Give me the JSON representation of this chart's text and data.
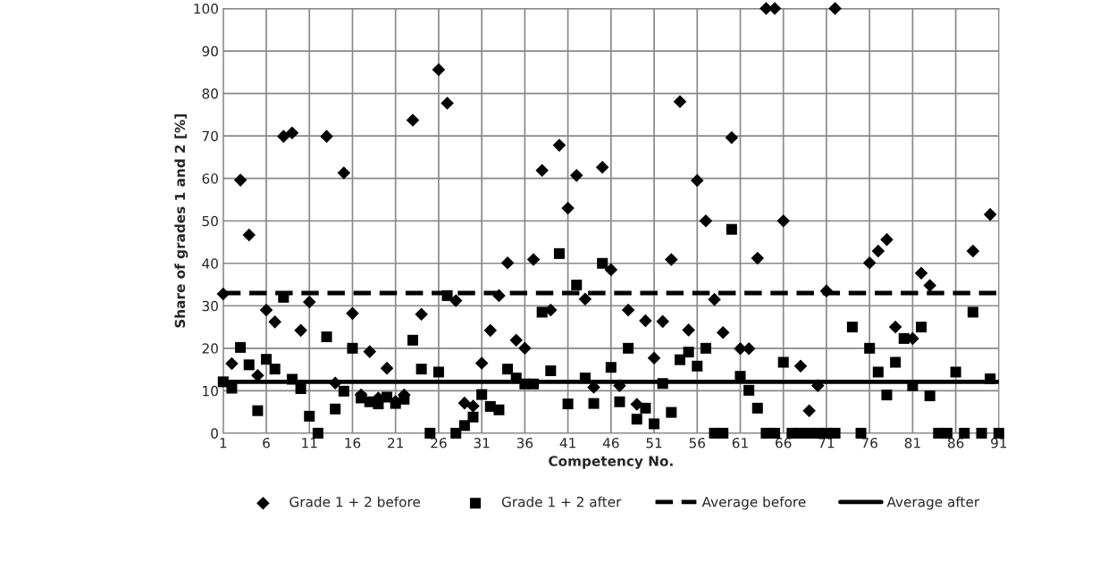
{
  "chart_data": {
    "type": "scatter",
    "xlabel": "Competency No.",
    "ylabel": "Share of grades 1 and 2 [%]",
    "x": [
      1,
      2,
      3,
      4,
      5,
      6,
      7,
      8,
      9,
      10,
      11,
      12,
      13,
      14,
      15,
      16,
      17,
      18,
      19,
      20,
      21,
      22,
      23,
      24,
      25,
      26,
      27,
      28,
      29,
      30,
      31,
      32,
      33,
      34,
      35,
      36,
      37,
      38,
      39,
      40,
      41,
      42,
      43,
      44,
      45,
      46,
      47,
      48,
      49,
      50,
      51,
      52,
      53,
      54,
      55,
      56,
      57,
      58,
      59,
      60,
      61,
      62,
      63,
      64,
      65,
      66,
      67,
      68,
      69,
      70,
      71,
      72,
      73,
      74,
      75,
      76,
      77,
      78,
      79,
      80,
      81,
      82,
      83,
      84,
      85,
      86,
      87,
      88,
      89,
      90,
      91
    ],
    "series": [
      {
        "name": "Grade 1 + 2 before",
        "color": "#000000",
        "marker": "diamond",
        "values": [
          32.8,
          16.4,
          59.6,
          46.7,
          13.6,
          29,
          26.2,
          69.9,
          70.7,
          24.2,
          30.9,
          null,
          69.9,
          11.8,
          61.3,
          28.2,
          9,
          19.2,
          8.3,
          15.3,
          7.5,
          9,
          73.7,
          28,
          null,
          85.6,
          77.7,
          31.2,
          7.1,
          6.4,
          16.5,
          24.2,
          32.4,
          40.1,
          21.9,
          20,
          40.9,
          61.9,
          29,
          67.8,
          53,
          60.7,
          31.6,
          10.8,
          62.6,
          38.5,
          11.2,
          29,
          6.8,
          26.5,
          17.7,
          26.3,
          40.9,
          78.1,
          24.3,
          59.5,
          50,
          31.5,
          23.7,
          69.6,
          19.9,
          19.9,
          41.2,
          100,
          100,
          50,
          null,
          15.8,
          5.3,
          11.2,
          33.5,
          100,
          null,
          null,
          null,
          40.1,
          42.9,
          45.6,
          25,
          null,
          22.3,
          37.7,
          34.8,
          null,
          null,
          null,
          null,
          42.9,
          null,
          51.5,
          null
        ]
      },
      {
        "name": "Grade 1 + 2 after",
        "color": "#000000",
        "marker": "square",
        "values": [
          12.1,
          10.6,
          20.2,
          16.1,
          5.3,
          17.4,
          15.1,
          32,
          12.7,
          10.5,
          4,
          0,
          22.7,
          5.7,
          9.9,
          20,
          8.3,
          7.4,
          6.9,
          8.5,
          7,
          8,
          21.9,
          15.1,
          0,
          14.4,
          32.4,
          0,
          1.8,
          3.8,
          9.1,
          6.3,
          5.5,
          15.1,
          13,
          11.6,
          11.6,
          28.5,
          14.7,
          42.3,
          6.9,
          34.9,
          13,
          7,
          40,
          15.5,
          7.4,
          20,
          3.3,
          5.9,
          2.2,
          11.7,
          4.9,
          17.3,
          19.1,
          15.8,
          20,
          0,
          0,
          48,
          13.4,
          10.1,
          5.9,
          0,
          0,
          16.7,
          0,
          0,
          0,
          0,
          0,
          0,
          null,
          25,
          0,
          20,
          14.4,
          9,
          16.7,
          22.3,
          11.2,
          25,
          8.8,
          0,
          0,
          14.4,
          0,
          28.5,
          0,
          12.8,
          0
        ]
      }
    ],
    "ref_lines": [
      {
        "axis": "y",
        "value": 33,
        "label": "Average before",
        "color": "#000000",
        "line_style": "dashed"
      },
      {
        "axis": "y",
        "value": 12.1,
        "label": "Average after",
        "color": "#000000",
        "line_style": "solid"
      }
    ],
    "xlim": [
      1,
      91
    ],
    "xticks": [
      1,
      6,
      11,
      16,
      21,
      26,
      31,
      36,
      41,
      46,
      51,
      56,
      61,
      66,
      71,
      76,
      81,
      86,
      91
    ],
    "ylim": [
      0,
      100
    ],
    "yticks": [
      0,
      10,
      20,
      30,
      40,
      50,
      60,
      70,
      80,
      90,
      100
    ],
    "grid": true,
    "legend": "bottom"
  }
}
